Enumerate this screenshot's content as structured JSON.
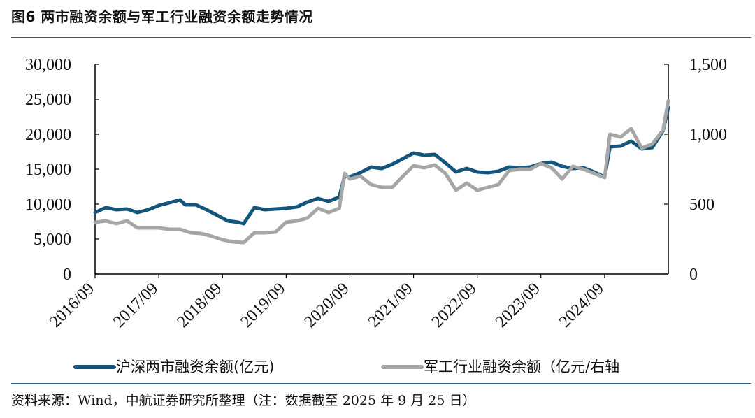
{
  "title": "图6 两市融资余额与军工行业融资余额走势情况",
  "source": "资料来源：Wind，中航证券研究所整理（注：数据截至 2025 年 9 月 25 日）",
  "colors": {
    "series1": "#14557c",
    "series2": "#a6a6a6",
    "rule": "#2c5c86"
  },
  "chart_data": {
    "type": "line",
    "title": "图6 两市融资余额与军工行业融资余额走势情况",
    "xlabel": "",
    "ylabel": "",
    "x_tick_labels": [
      "2016/09",
      "2017/09",
      "2018/09",
      "2019/09",
      "2020/09",
      "2021/09",
      "2022/09",
      "2023/09",
      "2024/09"
    ],
    "x_range": [
      "2016/09",
      "2025/09"
    ],
    "y_left": {
      "ticks": [
        "0",
        "5,000",
        "10,000",
        "15,000",
        "20,000",
        "25,000",
        "30,000"
      ],
      "ylim": [
        0,
        30000
      ]
    },
    "y_right": {
      "ticks": [
        "0",
        "500",
        "1,000",
        "1,500"
      ],
      "ylim": [
        0,
        1500
      ]
    },
    "grid": false,
    "legend_position": "bottom",
    "series": [
      {
        "name": "沪深两市融资余额(亿元)",
        "axis": "left",
        "points": [
          [
            "2016/09",
            8800
          ],
          [
            "2016/11",
            9500
          ],
          [
            "2017/01",
            9200
          ],
          [
            "2017/03",
            9300
          ],
          [
            "2017/05",
            8800
          ],
          [
            "2017/07",
            9200
          ],
          [
            "2017/09",
            9800
          ],
          [
            "2017/11",
            10200
          ],
          [
            "2018/01",
            10600
          ],
          [
            "2018/02",
            9900
          ],
          [
            "2018/04",
            9900
          ],
          [
            "2018/06",
            9200
          ],
          [
            "2018/08",
            8400
          ],
          [
            "2018/10",
            7600
          ],
          [
            "2018/12",
            7400
          ],
          [
            "2019/01",
            7200
          ],
          [
            "2019/03",
            9500
          ],
          [
            "2019/05",
            9200
          ],
          [
            "2019/07",
            9300
          ],
          [
            "2019/09",
            9400
          ],
          [
            "2019/11",
            9600
          ],
          [
            "2020/01",
            10300
          ],
          [
            "2020/03",
            10800
          ],
          [
            "2020/05",
            10400
          ],
          [
            "2020/07",
            11000
          ],
          [
            "2020/08",
            14000
          ],
          [
            "2020/09",
            13900
          ],
          [
            "2020/11",
            14500
          ],
          [
            "2021/01",
            15300
          ],
          [
            "2021/03",
            15100
          ],
          [
            "2021/05",
            15700
          ],
          [
            "2021/07",
            16500
          ],
          [
            "2021/09",
            17300
          ],
          [
            "2021/11",
            17000
          ],
          [
            "2022/01",
            17100
          ],
          [
            "2022/03",
            15900
          ],
          [
            "2022/05",
            14600
          ],
          [
            "2022/07",
            15100
          ],
          [
            "2022/09",
            14600
          ],
          [
            "2022/11",
            14500
          ],
          [
            "2023/01",
            14700
          ],
          [
            "2023/03",
            15300
          ],
          [
            "2023/05",
            15200
          ],
          [
            "2023/07",
            15300
          ],
          [
            "2023/09",
            15800
          ],
          [
            "2023/11",
            16000
          ],
          [
            "2024/01",
            15400
          ],
          [
            "2024/03",
            15100
          ],
          [
            "2024/05",
            15200
          ],
          [
            "2024/07",
            14600
          ],
          [
            "2024/09",
            13900
          ],
          [
            "2024/10",
            18200
          ],
          [
            "2024/12",
            18300
          ],
          [
            "2025/02",
            19000
          ],
          [
            "2025/04",
            17900
          ],
          [
            "2025/06",
            18100
          ],
          [
            "2025/08",
            20500
          ],
          [
            "2025/09",
            23800
          ]
        ]
      },
      {
        "name": "军工行业融资余额（亿元/右轴",
        "axis": "right",
        "points": [
          [
            "2016/09",
            370
          ],
          [
            "2016/11",
            380
          ],
          [
            "2017/01",
            360
          ],
          [
            "2017/03",
            380
          ],
          [
            "2017/05",
            330
          ],
          [
            "2017/07",
            330
          ],
          [
            "2017/09",
            330
          ],
          [
            "2017/11",
            320
          ],
          [
            "2018/01",
            320
          ],
          [
            "2018/03",
            295
          ],
          [
            "2018/05",
            290
          ],
          [
            "2018/07",
            270
          ],
          [
            "2018/09",
            245
          ],
          [
            "2018/11",
            230
          ],
          [
            "2019/01",
            225
          ],
          [
            "2019/03",
            295
          ],
          [
            "2019/05",
            295
          ],
          [
            "2019/07",
            300
          ],
          [
            "2019/09",
            370
          ],
          [
            "2019/11",
            380
          ],
          [
            "2020/01",
            400
          ],
          [
            "2020/03",
            470
          ],
          [
            "2020/05",
            440
          ],
          [
            "2020/07",
            470
          ],
          [
            "2020/08",
            720
          ],
          [
            "2020/09",
            680
          ],
          [
            "2020/11",
            700
          ],
          [
            "2021/01",
            640
          ],
          [
            "2021/03",
            620
          ],
          [
            "2021/05",
            620
          ],
          [
            "2021/07",
            700
          ],
          [
            "2021/09",
            775
          ],
          [
            "2021/11",
            760
          ],
          [
            "2022/01",
            780
          ],
          [
            "2022/03",
            720
          ],
          [
            "2022/05",
            600
          ],
          [
            "2022/07",
            650
          ],
          [
            "2022/09",
            600
          ],
          [
            "2022/11",
            620
          ],
          [
            "2023/01",
            640
          ],
          [
            "2023/03",
            740
          ],
          [
            "2023/05",
            750
          ],
          [
            "2023/07",
            750
          ],
          [
            "2023/09",
            790
          ],
          [
            "2023/11",
            760
          ],
          [
            "2024/01",
            680
          ],
          [
            "2024/03",
            770
          ],
          [
            "2024/05",
            750
          ],
          [
            "2024/07",
            720
          ],
          [
            "2024/09",
            690
          ],
          [
            "2024/10",
            1000
          ],
          [
            "2024/12",
            980
          ],
          [
            "2025/02",
            1040
          ],
          [
            "2025/04",
            900
          ],
          [
            "2025/06",
            930
          ],
          [
            "2025/08",
            1030
          ],
          [
            "2025/09",
            1240
          ]
        ]
      }
    ]
  }
}
